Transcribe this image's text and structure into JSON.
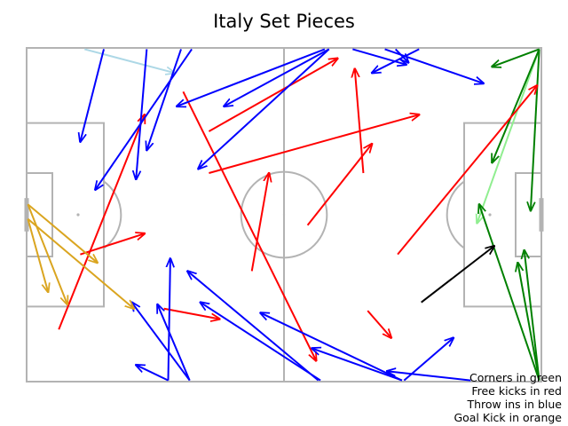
{
  "chart_data": {
    "type": "pass-map",
    "title": "Italy Set Pieces",
    "pitch": {
      "length": 120,
      "width": 80,
      "line_color": "#b3b3b3"
    },
    "legend_lines": [
      "Corners in green",
      "Free kicks in red",
      "Throw ins in blue",
      "Goal Kick in orange"
    ],
    "categories": {
      "corner": "#008000",
      "corner_light": "#90ee90",
      "free_kick": "#ff0000",
      "throw_in": "#0000ff",
      "throw_in_light": "#add8e6",
      "goal_kick": "#daa520",
      "other": "#000000"
    },
    "passes": [
      {
        "type": "corner_light",
        "x": 119.5,
        "y": 0.3,
        "end_x": 105.0,
        "end_y": 42.0
      },
      {
        "type": "corner",
        "x": 119.5,
        "y": 0.3,
        "end_x": 108.5,
        "end_y": 27.5
      },
      {
        "type": "corner",
        "x": 119.5,
        "y": 0.3,
        "end_x": 117.5,
        "end_y": 39.0
      },
      {
        "type": "corner",
        "x": 119.5,
        "y": 0.3,
        "end_x": 108.5,
        "end_y": 4.5
      },
      {
        "type": "corner",
        "x": 119.5,
        "y": 79.7,
        "end_x": 105.5,
        "end_y": 37.5
      },
      {
        "type": "corner",
        "x": 119.5,
        "y": 79.7,
        "end_x": 114.5,
        "end_y": 51.5
      },
      {
        "type": "corner",
        "x": 119.5,
        "y": 79.7,
        "end_x": 116.0,
        "end_y": 48.5
      },
      {
        "type": "free_kick",
        "x": 36.5,
        "y": 10.5,
        "end_x": 67.5,
        "end_y": 75.0
      },
      {
        "type": "free_kick",
        "x": 7.5,
        "y": 67.5,
        "end_x": 27.5,
        "end_y": 16.0
      },
      {
        "type": "free_kick",
        "x": 12.5,
        "y": 49.5,
        "end_x": 27.5,
        "end_y": 44.5
      },
      {
        "type": "free_kick",
        "x": 32.0,
        "y": 62.5,
        "end_x": 45.0,
        "end_y": 65.0
      },
      {
        "type": "free_kick",
        "x": 52.5,
        "y": 53.5,
        "end_x": 56.5,
        "end_y": 30.0
      },
      {
        "type": "free_kick",
        "x": 42.5,
        "y": 30.0,
        "end_x": 91.5,
        "end_y": 16.0
      },
      {
        "type": "free_kick",
        "x": 42.5,
        "y": 20.0,
        "end_x": 72.5,
        "end_y": 2.5
      },
      {
        "type": "free_kick",
        "x": 65.5,
        "y": 42.5,
        "end_x": 80.5,
        "end_y": 23.0
      },
      {
        "type": "free_kick",
        "x": 78.5,
        "y": 30.0,
        "end_x": 76.5,
        "end_y": 5.0
      },
      {
        "type": "free_kick",
        "x": 86.5,
        "y": 49.5,
        "end_x": 119.0,
        "end_y": 9.0
      },
      {
        "type": "free_kick",
        "x": 79.5,
        "y": 63.0,
        "end_x": 85.0,
        "end_y": 69.5
      },
      {
        "type": "throw_in_light",
        "x": 13.5,
        "y": 0.3,
        "end_x": 34.5,
        "end_y": 6.0
      },
      {
        "type": "throw_in",
        "x": 18.0,
        "y": 0.3,
        "end_x": 12.5,
        "end_y": 22.5
      },
      {
        "type": "throw_in",
        "x": 28.0,
        "y": 0.3,
        "end_x": 25.5,
        "end_y": 31.5
      },
      {
        "type": "throw_in",
        "x": 36.0,
        "y": 0.3,
        "end_x": 28.0,
        "end_y": 24.5
      },
      {
        "type": "throw_in",
        "x": 38.5,
        "y": 0.3,
        "end_x": 16.0,
        "end_y": 34.0
      },
      {
        "type": "throw_in",
        "x": 69.5,
        "y": 0.3,
        "end_x": 35.0,
        "end_y": 14.0
      },
      {
        "type": "throw_in",
        "x": 70.5,
        "y": 0.3,
        "end_x": 40.0,
        "end_y": 29.0
      },
      {
        "type": "throw_in",
        "x": 70.5,
        "y": 0.3,
        "end_x": 46.0,
        "end_y": 14.0
      },
      {
        "type": "throw_in",
        "x": 76.0,
        "y": 0.3,
        "end_x": 88.5,
        "end_y": 4.0
      },
      {
        "type": "throw_in",
        "x": 83.5,
        "y": 0.3,
        "end_x": 106.5,
        "end_y": 8.5
      },
      {
        "type": "throw_in",
        "x": 86.0,
        "y": 0.3,
        "end_x": 89.0,
        "end_y": 3.5
      },
      {
        "type": "throw_in",
        "x": 91.5,
        "y": 0.3,
        "end_x": 80.5,
        "end_y": 6.0
      },
      {
        "type": "throw_in",
        "x": 33.0,
        "y": 79.7,
        "end_x": 33.5,
        "end_y": 50.5
      },
      {
        "type": "throw_in",
        "x": 33.0,
        "y": 79.7,
        "end_x": 25.5,
        "end_y": 76.0
      },
      {
        "type": "throw_in",
        "x": 38.0,
        "y": 79.7,
        "end_x": 30.5,
        "end_y": 61.5
      },
      {
        "type": "throw_in",
        "x": 38.0,
        "y": 79.7,
        "end_x": 24.5,
        "end_y": 61.0
      },
      {
        "type": "throw_in",
        "x": 68.0,
        "y": 79.7,
        "end_x": 37.5,
        "end_y": 53.5
      },
      {
        "type": "throw_in",
        "x": 68.5,
        "y": 79.7,
        "end_x": 40.5,
        "end_y": 61.0
      },
      {
        "type": "throw_in",
        "x": 87.5,
        "y": 79.7,
        "end_x": 54.5,
        "end_y": 63.5
      },
      {
        "type": "throw_in",
        "x": 87.5,
        "y": 79.7,
        "end_x": 66.5,
        "end_y": 72.0
      },
      {
        "type": "throw_in",
        "x": 88.0,
        "y": 79.7,
        "end_x": 99.5,
        "end_y": 69.5
      },
      {
        "type": "throw_in",
        "x": 103.5,
        "y": 79.7,
        "end_x": 84.0,
        "end_y": 77.5
      },
      {
        "type": "goal_kick",
        "x": 0.3,
        "y": 37.5,
        "end_x": 9.5,
        "end_y": 61.5
      },
      {
        "type": "goal_kick",
        "x": 0.3,
        "y": 37.5,
        "end_x": 16.5,
        "end_y": 51.5
      },
      {
        "type": "goal_kick",
        "x": 0.3,
        "y": 41.0,
        "end_x": 25.0,
        "end_y": 62.5
      },
      {
        "type": "goal_kick",
        "x": 0.3,
        "y": 41.0,
        "end_x": 5.0,
        "end_y": 58.5
      },
      {
        "type": "other",
        "x": 92.0,
        "y": 61.0,
        "end_x": 109.0,
        "end_y": 47.5
      }
    ]
  }
}
